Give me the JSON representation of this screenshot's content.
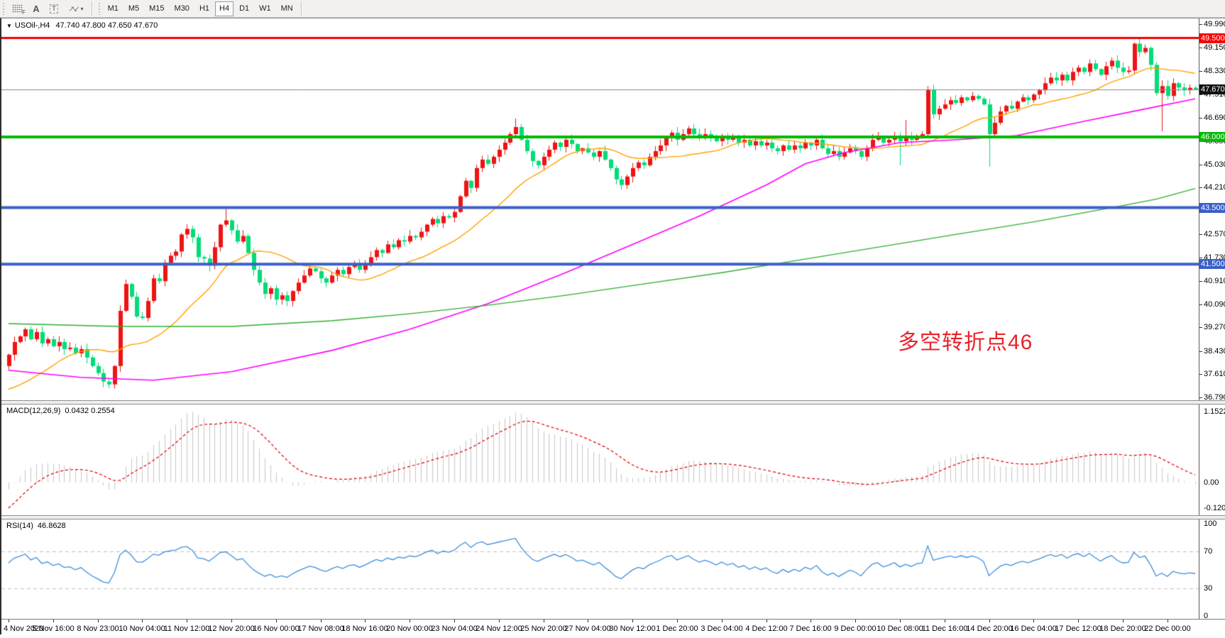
{
  "toolbar": {
    "tool_f": "F",
    "tool_a": "A",
    "tool_t": "T",
    "timeframes": [
      "M1",
      "M5",
      "M15",
      "M30",
      "H1",
      "H4",
      "D1",
      "W1",
      "MN"
    ],
    "active_timeframe": "H4"
  },
  "window": {
    "symbol_title": "USOil-,H4",
    "ohlc_text": "47.740 47.800 47.650 47.670"
  },
  "annotation": {
    "text": "多空转折点46",
    "color": "#e8232a"
  },
  "macd_panel": {
    "name": "MACD(12,26,9)",
    "values": "0.0432 0.2554",
    "axis_labels": [
      "1.1522",
      "0.00",
      "-0.1206"
    ]
  },
  "rsi_panel": {
    "name": "RSI(14)",
    "value": "46.8628",
    "axis_labels": [
      "100",
      "70",
      "30",
      "0"
    ],
    "levels": [
      70,
      30
    ]
  },
  "colors": {
    "bull": "#ee1414",
    "bear": "#00dc78",
    "ma_fast": "#ffa200",
    "ma_mid": "#ff00ff",
    "ma_slow": "#2fae2f",
    "hline_red": "#f40000",
    "hline_green": "#00bb00",
    "hline_blue": "#3b5fc8",
    "price_line": "#8c8c8c",
    "badge_black": "#111111",
    "macd_hist": "#c6c6c6",
    "macd_signal": "#e00000",
    "rsi_line": "#3d8fdd",
    "rsi_level": "#c0c0c0"
  },
  "chart_data": {
    "type": "candlestick",
    "symbol": "USOil-",
    "timeframe": "H4",
    "ohlc_current": {
      "open": 47.74,
      "high": 47.8,
      "low": 47.65,
      "close": 47.67
    },
    "ylim": [
      36.79,
      49.99
    ],
    "n_bars": 214,
    "first_open": 37.9,
    "closes": [
      38.3,
      38.75,
      38.95,
      39.2,
      38.85,
      39.1,
      38.7,
      38.85,
      38.6,
      38.75,
      38.5,
      38.55,
      38.35,
      38.5,
      38.2,
      37.9,
      37.65,
      37.35,
      37.25,
      37.9,
      39.85,
      40.8,
      40.35,
      39.65,
      39.6,
      40.2,
      41.0,
      40.9,
      41.55,
      41.8,
      41.95,
      42.55,
      42.75,
      42.45,
      41.75,
      41.7,
      41.45,
      42.1,
      42.9,
      43.05,
      42.7,
      42.3,
      42.5,
      41.9,
      41.3,
      40.85,
      40.45,
      40.65,
      40.25,
      40.4,
      40.2,
      40.55,
      40.85,
      41.1,
      41.35,
      41.25,
      41.0,
      40.85,
      41.1,
      41.3,
      41.15,
      41.4,
      41.5,
      41.3,
      41.5,
      41.75,
      42.0,
      41.9,
      42.2,
      42.1,
      42.35,
      42.3,
      42.5,
      42.45,
      42.65,
      42.9,
      43.1,
      42.95,
      43.2,
      43.15,
      43.35,
      43.9,
      44.45,
      44.2,
      44.9,
      45.2,
      45.05,
      45.3,
      45.55,
      45.8,
      46.1,
      46.35,
      45.9,
      45.5,
      45.15,
      45.0,
      45.3,
      45.55,
      45.8,
      45.65,
      45.9,
      45.75,
      45.5,
      45.6,
      45.45,
      45.3,
      45.5,
      45.2,
      44.9,
      44.5,
      44.3,
      44.6,
      44.9,
      45.1,
      45.0,
      45.3,
      45.5,
      45.7,
      46.0,
      46.15,
      45.9,
      46.1,
      46.3,
      46.1,
      45.95,
      46.1,
      46.0,
      45.85,
      46.05,
      45.9,
      46.0,
      45.8,
      45.9,
      45.7,
      45.85,
      45.7,
      45.8,
      45.6,
      45.5,
      45.7,
      45.55,
      45.7,
      45.6,
      45.8,
      45.7,
      45.9,
      45.6,
      45.4,
      45.5,
      45.3,
      45.45,
      45.6,
      45.5,
      45.3,
      45.6,
      45.9,
      46.0,
      45.8,
      45.9,
      46.05,
      45.85,
      46.0,
      45.9,
      46.05,
      46.1,
      47.67,
      46.8,
      47.0,
      47.15,
      47.3,
      47.2,
      47.4,
      47.3,
      47.45,
      47.35,
      47.15,
      46.1,
      46.5,
      46.9,
      47.1,
      47.0,
      47.25,
      47.4,
      47.3,
      47.5,
      47.65,
      47.9,
      48.1,
      48.0,
      48.2,
      48.0,
      48.3,
      48.45,
      48.3,
      48.6,
      48.4,
      48.2,
      48.5,
      48.7,
      48.45,
      48.3,
      48.35,
      49.3,
      49.0,
      49.15,
      48.55,
      47.55,
      47.8,
      47.45,
      47.9,
      47.75,
      47.65,
      47.74,
      47.67
    ],
    "prehistory": [
      40.6,
      40.4,
      40.1,
      39.9,
      40.2,
      40.0,
      39.7,
      39.5,
      39.6,
      39.3,
      39.1,
      38.9,
      39.0,
      38.7,
      38.5,
      38.6,
      38.3,
      38.1,
      37.9,
      38.0,
      37.7,
      37.5,
      37.3,
      37.1,
      36.9,
      36.7,
      36.5,
      36.3,
      36.1,
      35.9,
      36.2,
      36.5,
      36.9,
      37.2,
      37.5,
      37.3,
      37.6,
      37.9,
      38.1,
      37.9
    ],
    "wick_overrides": {
      "17": {
        "l": 37.15
      },
      "18": {
        "l": 37.12
      },
      "39": {
        "h": 43.45
      },
      "91": {
        "h": 46.65
      },
      "160": {
        "l": 45.0
      },
      "161": {
        "h": 46.6
      },
      "165": {
        "h": 47.8
      },
      "176": {
        "l": 44.95
      },
      "207": {
        "l": 46.2
      },
      "213": {
        "h": 47.8,
        "l": 47.65
      }
    },
    "price_ticks": [
      {
        "v": 49.99,
        "t": "49.990"
      },
      {
        "v": 49.15,
        "t": "49.150"
      },
      {
        "v": 48.33,
        "t": "48.330"
      },
      {
        "v": 47.51,
        "t": "47.510"
      },
      {
        "v": 46.69,
        "t": "46.690"
      },
      {
        "v": 45.85,
        "t": "45.850"
      },
      {
        "v": 45.03,
        "t": "45.030"
      },
      {
        "v": 44.21,
        "t": "44.210"
      },
      {
        "v": 43.39,
        "t": "43.390"
      },
      {
        "v": 42.57,
        "t": "42.570"
      },
      {
        "v": 41.73,
        "t": "41.730"
      },
      {
        "v": 40.91,
        "t": "40.910"
      },
      {
        "v": 40.09,
        "t": "40.090"
      },
      {
        "v": 39.27,
        "t": "39.270"
      },
      {
        "v": 38.43,
        "t": "38.430"
      },
      {
        "v": 37.61,
        "t": "37.610"
      },
      {
        "v": 36.79,
        "t": "36.790"
      }
    ],
    "hlines": [
      {
        "price": 49.5,
        "label": "49.500",
        "color": "#f40000",
        "width": 3
      },
      {
        "price": 46.0,
        "label": "46.000",
        "color": "#00bb00",
        "width": 4
      },
      {
        "price": 43.5,
        "label": "43.500",
        "color": "#3b5fc8",
        "width": 4
      },
      {
        "price": 41.5,
        "label": "41.500",
        "color": "#3b5fc8",
        "width": 4
      }
    ],
    "current_price": {
      "price": 47.67,
      "label": "47.670"
    },
    "moving_averages": {
      "fast": {
        "type": "sma",
        "period": 20,
        "color_key": "ma_fast"
      },
      "mid": {
        "type": "anchors",
        "color_key": "ma_mid",
        "anchors": [
          [
            0,
            37.75
          ],
          [
            13,
            37.5
          ],
          [
            26,
            37.4
          ],
          [
            40,
            37.7
          ],
          [
            58,
            38.45
          ],
          [
            72,
            39.2
          ],
          [
            86,
            40.1
          ],
          [
            100,
            41.2
          ],
          [
            112,
            42.2
          ],
          [
            124,
            43.2
          ],
          [
            136,
            44.3
          ],
          [
            143,
            45.05
          ],
          [
            150,
            45.45
          ],
          [
            160,
            45.8
          ],
          [
            170,
            45.9
          ],
          [
            181,
            46.05
          ],
          [
            193,
            46.55
          ],
          [
            203,
            46.95
          ],
          [
            213,
            47.35
          ]
        ]
      },
      "slow": {
        "type": "anchors",
        "color_key": "ma_slow",
        "anchors": [
          [
            0,
            39.4
          ],
          [
            20,
            39.3
          ],
          [
            40,
            39.3
          ],
          [
            58,
            39.5
          ],
          [
            72,
            39.75
          ],
          [
            86,
            40.05
          ],
          [
            100,
            40.4
          ],
          [
            114,
            40.8
          ],
          [
            128,
            41.2
          ],
          [
            142,
            41.65
          ],
          [
            156,
            42.1
          ],
          [
            170,
            42.55
          ],
          [
            184,
            43.0
          ],
          [
            198,
            43.5
          ],
          [
            206,
            43.8
          ],
          [
            213,
            44.18
          ]
        ]
      }
    },
    "indicators": {
      "macd": {
        "fast": 12,
        "slow": 26,
        "signal": 9,
        "current": "0.0432 0.2554"
      },
      "rsi": {
        "period": 14,
        "current": "46.8628",
        "levels": [
          70,
          30
        ]
      }
    },
    "label_every": 8,
    "time_labels": [
      "4 Nov 2020",
      "5 Nov 16:00",
      "8 Nov 23:00",
      "10 Nov 04:00",
      "11 Nov 12:00",
      "12 Nov 20:00",
      "16 Nov 00:00",
      "17 Nov 08:00",
      "18 Nov 16:00",
      "20 Nov 00:00",
      "23 Nov 04:00",
      "24 Nov 12:00",
      "25 Nov 20:00",
      "27 Nov 04:00",
      "30 Nov 12:00",
      "1 Dec 20:00",
      "3 Dec 04:00",
      "4 Dec 12:00",
      "7 Dec 16:00",
      "9 Dec 00:00",
      "10 Dec 08:00",
      "11 Dec 16:00",
      "14 Dec 20:00",
      "16 Dec 04:00",
      "17 Dec 12:00",
      "18 Dec 20:00",
      "22 Dec 00:00"
    ]
  }
}
